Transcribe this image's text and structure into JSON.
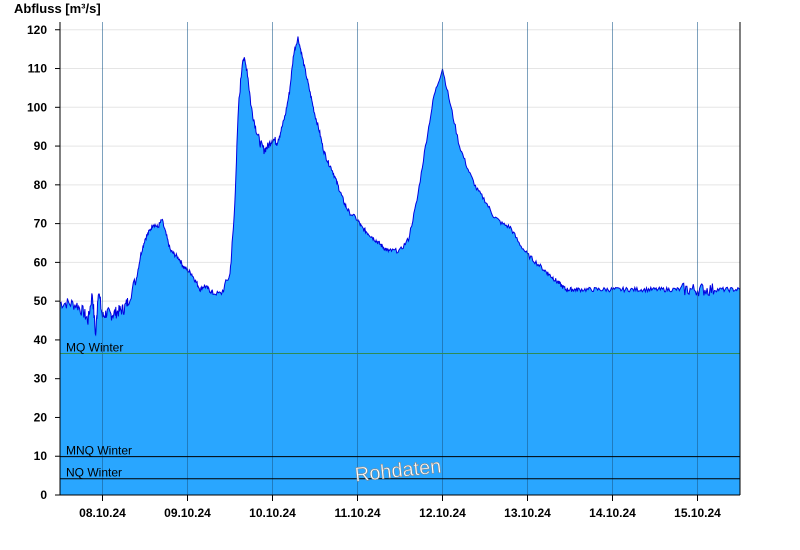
{
  "chart_data": {
    "type": "area",
    "ylabel": "Abfluss [m³/s]",
    "xlabel": "",
    "ylim": [
      0,
      122
    ],
    "y_ticks": [
      0,
      10,
      20,
      30,
      40,
      50,
      60,
      70,
      80,
      90,
      100,
      110,
      120
    ],
    "x_range_days": [
      "07.10.24 12:00",
      "15.10.24 12:00"
    ],
    "day_boundaries": [
      "08.10.24",
      "09.10.24",
      "10.10.24",
      "11.10.24",
      "12.10.24",
      "13.10.24",
      "14.10.24",
      "15.10.24"
    ],
    "x_tick_labels": [
      "08.10.24",
      "09.10.24",
      "10.10.24",
      "11.10.24",
      "12.10.24",
      "13.10.24",
      "14.10.24",
      "15.10.24"
    ],
    "series": [
      {
        "x_days": [
          0.0,
          0.1,
          0.2,
          0.28,
          0.33,
          0.38,
          0.42,
          0.45,
          0.5,
          0.55,
          0.6,
          0.65,
          0.7,
          0.75,
          0.8,
          0.9,
          0.95,
          1.0,
          1.05,
          1.1,
          1.15,
          1.2,
          1.25,
          1.3,
          1.35,
          1.4,
          1.45,
          1.5,
          1.55,
          1.6,
          1.65,
          1.7,
          1.75,
          1.8,
          1.9,
          2.0,
          2.05,
          2.1,
          2.15,
          2.2,
          2.25,
          2.3,
          2.35,
          2.4,
          2.45,
          2.5,
          2.55,
          2.6,
          2.65,
          2.7,
          2.75,
          2.8,
          2.85,
          2.9,
          2.95,
          3.0,
          3.05,
          3.1,
          3.15,
          3.2,
          3.25,
          3.3,
          3.35,
          3.4,
          3.5,
          3.55,
          3.6,
          3.65,
          3.7,
          3.75,
          3.8,
          3.85,
          3.9,
          4.0,
          4.1,
          4.2,
          4.3,
          4.4,
          4.5,
          4.6,
          4.7,
          4.8,
          4.9,
          5.0,
          5.1,
          5.2,
          5.3,
          5.4,
          5.5,
          5.6,
          5.7,
          5.75,
          5.8,
          5.85,
          5.9,
          5.95,
          6.0,
          6.05,
          6.1,
          6.2,
          6.3,
          6.4,
          6.5,
          6.6,
          6.7,
          6.8,
          6.9,
          7.0,
          7.1,
          7.2,
          7.3,
          7.4,
          7.5,
          7.6,
          7.7,
          7.8,
          7.9,
          8.0
        ],
        "values": [
          49.5,
          49.5,
          49,
          47,
          45,
          52,
          41,
          53,
          46,
          47,
          46.5,
          47,
          47.5,
          48,
          50,
          56,
          62,
          66,
          68,
          70,
          69,
          71,
          67,
          63,
          62,
          61,
          59,
          58,
          57,
          55,
          53,
          54,
          53,
          52,
          52,
          57,
          72,
          100,
          113,
          110,
          100,
          95,
          91,
          89,
          90,
          92,
          91,
          94,
          98,
          104,
          114,
          118,
          113,
          108,
          103,
          98,
          94,
          89,
          86,
          84,
          81,
          78,
          75,
          73,
          71,
          69,
          68,
          67,
          66,
          65,
          64,
          63,
          63,
          63,
          66,
          76,
          90,
          103,
          110,
          100,
          90,
          84,
          79,
          76,
          72,
          70,
          69,
          65,
          62,
          60,
          58,
          57,
          56,
          55,
          54,
          53,
          53,
          53,
          53,
          53,
          53,
          53,
          53,
          53,
          53,
          53,
          53,
          53,
          53,
          53,
          53,
          53,
          53,
          53,
          53,
          53,
          53,
          53
        ]
      }
    ],
    "reference_lines": [
      {
        "label": "MQ Winter",
        "value": 36.5,
        "color": "#2e8b57"
      },
      {
        "label": "MNQ Winter",
        "value": 9.9,
        "color": "#000000"
      },
      {
        "label": "NQ Winter",
        "value": 4.2,
        "color": "#000000"
      }
    ],
    "colors": {
      "fill": "#29a6ff",
      "line": "#0000e0",
      "grid": "#e5e5e5",
      "day_divider": "#1a5a8c"
    },
    "watermark": "Rohdaten",
    "grid": true
  }
}
